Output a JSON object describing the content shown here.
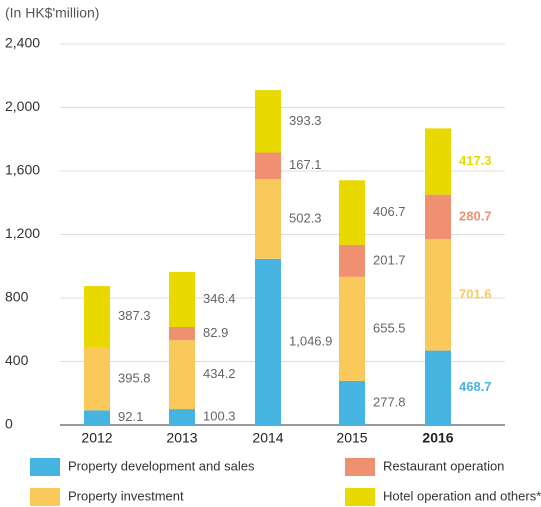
{
  "chart_data": {
    "type": "stacked_bar",
    "y_label": "(In HK$'million)",
    "categories": [
      "2012",
      "2013",
      "2014",
      "2015",
      "2016"
    ],
    "series": [
      {
        "name": "Property development and sales",
        "color": "#45b4e1",
        "values": [
          92.1,
          100.3,
          1046.9,
          277.8,
          468.7
        ],
        "value_labels": [
          "92.1",
          "100.3",
          "1,046.9",
          "277.8",
          "468.7"
        ]
      },
      {
        "name": "Property investment",
        "color": "#f9c95b",
        "values": [
          395.8,
          434.2,
          502.3,
          655.5,
          701.6
        ],
        "value_labels": [
          "395.8",
          "434.2",
          "502.3",
          "655.5",
          "701.6"
        ]
      },
      {
        "name": "Restaurant operation",
        "color": "#ef9170",
        "values": [
          null,
          82.9,
          167.1,
          201.7,
          280.7
        ],
        "value_labels": [
          null,
          "82.9",
          "167.1",
          "201.7",
          "280.7"
        ]
      },
      {
        "name": "Hotel operation and others*",
        "color": "#e8d900",
        "values": [
          387.3,
          346.4,
          393.3,
          406.7,
          417.3
        ],
        "value_labels": [
          "387.3",
          "346.4",
          "393.3",
          "406.7",
          "417.3"
        ]
      }
    ],
    "ylim": [
      0,
      2400
    ],
    "yticks": [
      0,
      400,
      800,
      {
        "value": 1200,
        "label": "1,200"
      },
      {
        "value": 1600,
        "label": "1,600"
      },
      {
        "value": 2000,
        "label": "2,000"
      },
      {
        "value": 2400,
        "label": "2,400"
      }
    ],
    "grid": true
  }
}
